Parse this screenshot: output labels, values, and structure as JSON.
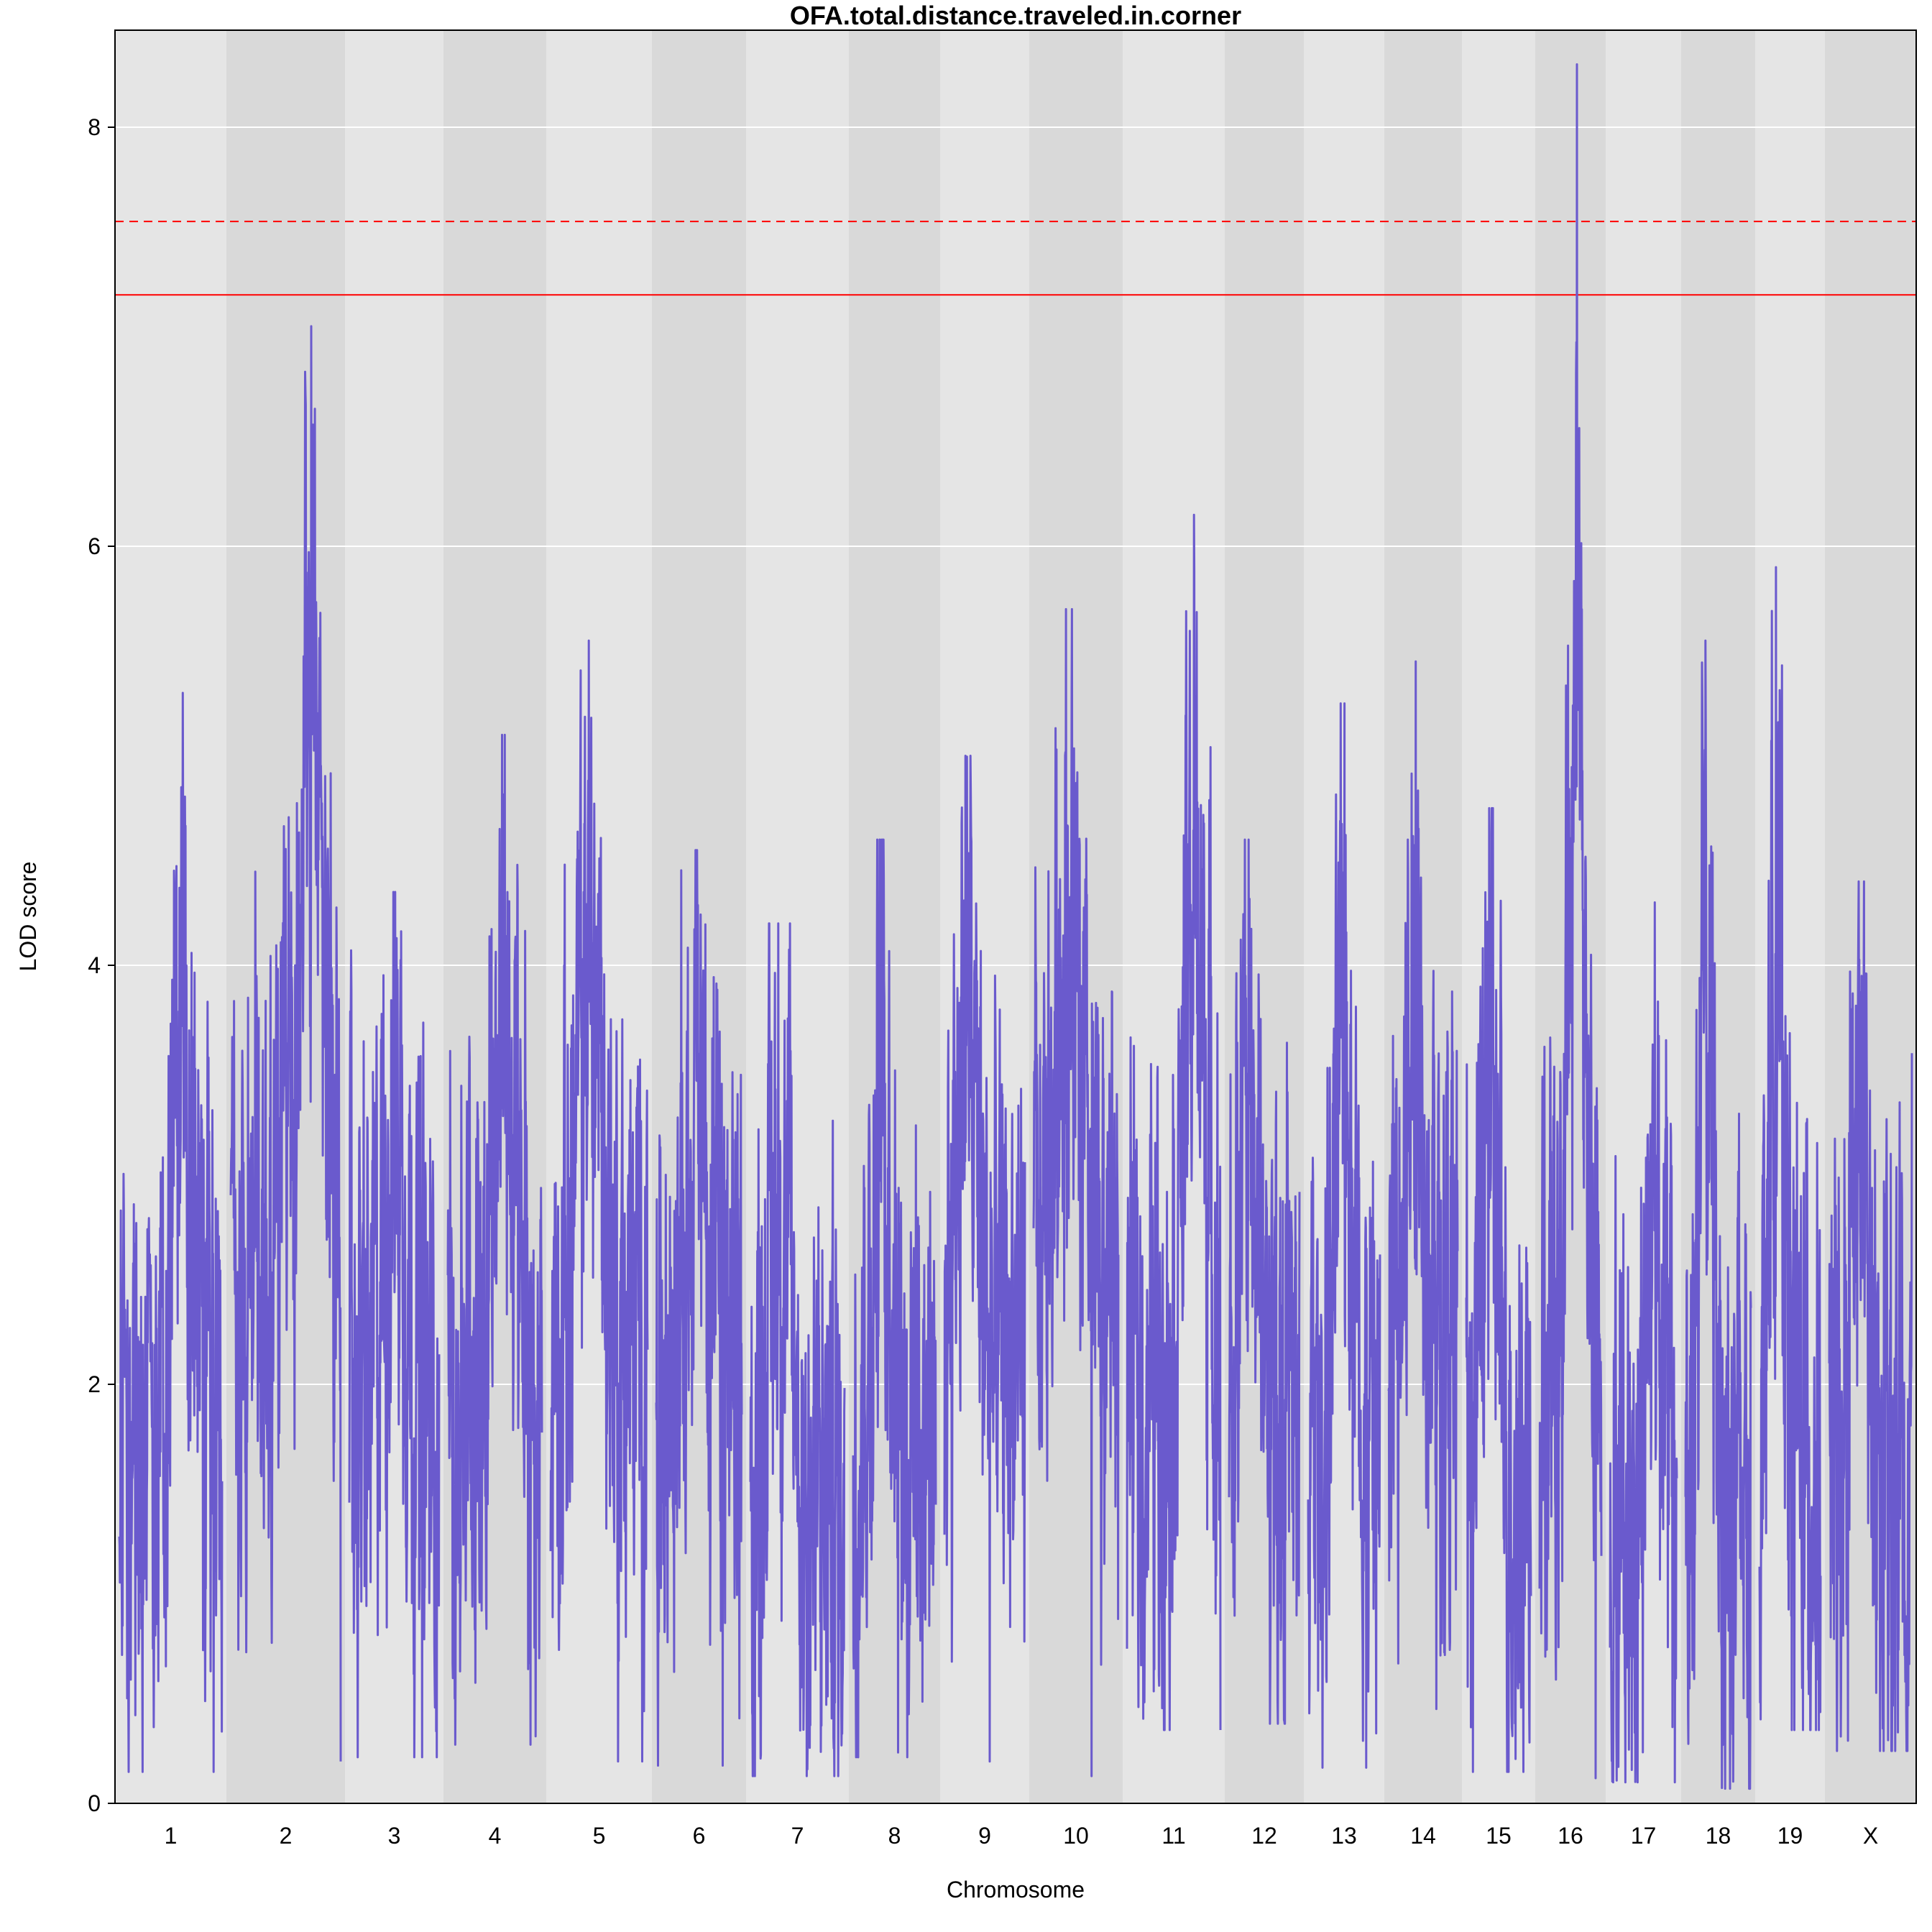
{
  "chart_data": {
    "type": "line",
    "title": "OFA.total.distance.traveled.in.corner",
    "xlabel": "Chromosome",
    "ylabel": "LOD score",
    "ylim": [
      0,
      8.5
    ],
    "yticks": [
      0,
      2,
      4,
      6,
      8
    ],
    "grid": true,
    "colors": {
      "line": "#6a5acd",
      "band_light": "#e5e5e5",
      "band_dark": "#d9d9d9",
      "gridline": "#ffffff",
      "threshold": "#ff0000"
    },
    "thresholds": [
      {
        "value": 7.55,
        "style": "dashed"
      },
      {
        "value": 7.2,
        "style": "solid"
      }
    ],
    "chromosomes": [
      {
        "label": "1",
        "peak": 5.3,
        "min": 0.15,
        "mean": 1.6
      },
      {
        "label": "2",
        "peak": 7.05,
        "min": 0.2,
        "mean": 2.6
      },
      {
        "label": "3",
        "peak": 4.35,
        "min": 0.22,
        "mean": 1.9
      },
      {
        "label": "4",
        "peak": 5.1,
        "min": 0.28,
        "mean": 2.0
      },
      {
        "label": "5",
        "peak": 5.55,
        "min": 0.2,
        "mean": 2.2
      },
      {
        "label": "6",
        "peak": 4.55,
        "min": 0.18,
        "mean": 2.0
      },
      {
        "label": "7",
        "peak": 4.2,
        "min": 0.13,
        "mean": 1.4
      },
      {
        "label": "8",
        "peak": 4.6,
        "min": 0.22,
        "mean": 1.8
      },
      {
        "label": "9",
        "peak": 5.0,
        "min": 0.2,
        "mean": 2.2
      },
      {
        "label": "10",
        "peak": 5.7,
        "min": 0.13,
        "mean": 2.5
      },
      {
        "label": "11",
        "peak": 6.15,
        "min": 0.35,
        "mean": 2.0
      },
      {
        "label": "12",
        "peak": 4.6,
        "min": 0.38,
        "mean": 1.9
      },
      {
        "label": "13",
        "peak": 5.25,
        "min": 0.17,
        "mean": 1.7
      },
      {
        "label": "14",
        "peak": 5.45,
        "min": 0.45,
        "mean": 2.2
      },
      {
        "label": "15",
        "peak": 4.75,
        "min": 0.15,
        "mean": 1.6
      },
      {
        "label": "16",
        "peak": 8.3,
        "min": 0.12,
        "mean": 2.0
      },
      {
        "label": "17",
        "peak": 4.3,
        "min": 0.1,
        "mean": 1.4
      },
      {
        "label": "18",
        "peak": 5.55,
        "min": 0.07,
        "mean": 1.5
      },
      {
        "label": "19",
        "peak": 5.9,
        "min": 0.35,
        "mean": 1.7
      },
      {
        "label": "X",
        "peak": 4.4,
        "min": 0.25,
        "mean": 1.5
      }
    ]
  }
}
